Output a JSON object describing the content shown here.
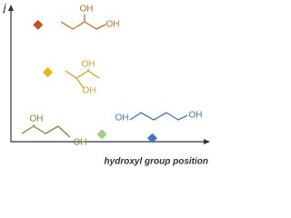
{
  "chart_data": {
    "type": "scatter",
    "y_label": "j",
    "x_label": "hydroxyl group position",
    "x": [
      1.4,
      1.9,
      4.7,
      7.3
    ],
    "values": [
      8.8,
      5.2,
      0.5,
      0.2
    ],
    "colors": [
      "#c4531e",
      "#f0b400",
      "#9ccf7e",
      "#3a78c8"
    ],
    "xlim": [
      0,
      10
    ],
    "ylim": [
      0,
      10
    ],
    "molecules": [
      {
        "labels": [
          "OH",
          "OH"
        ],
        "color": "#cc6a1c"
      },
      {
        "labels": [
          "OH",
          "OH"
        ],
        "color": "#d9a11d"
      },
      {
        "labels": [
          "OH",
          "OH"
        ],
        "color": "#5f9a2c"
      },
      {
        "labels": [
          "OH",
          "OH"
        ],
        "color": "#3b7ac0"
      }
    ]
  }
}
